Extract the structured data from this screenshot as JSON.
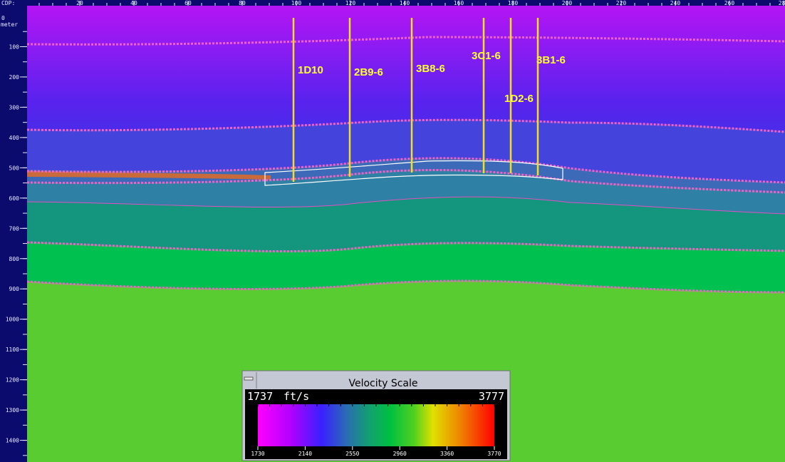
{
  "ruler": {
    "x_label": "CDP:",
    "x_ticks": [
      20,
      40,
      60,
      80,
      100,
      120,
      140,
      160,
      180,
      200,
      220,
      240,
      260,
      280
    ],
    "y_origin": "0",
    "y_unit": "meter",
    "y_ticks": [
      100,
      200,
      300,
      400,
      500,
      600,
      700,
      800,
      900,
      1000,
      1100,
      1200,
      1300,
      1400
    ]
  },
  "wells": [
    {
      "label": "1D10"
    },
    {
      "label": "2B9-6"
    },
    {
      "label": "3B8-6"
    },
    {
      "label": "3C1-6"
    },
    {
      "label": "1D2-6"
    },
    {
      "label": "3B1-6"
    }
  ],
  "velocity_scale": {
    "title": "Velocity Scale",
    "min": "1737",
    "unit": "ft/s",
    "max": "3777",
    "ticks": [
      1730,
      2140,
      2550,
      2960,
      3360,
      3770
    ]
  }
}
